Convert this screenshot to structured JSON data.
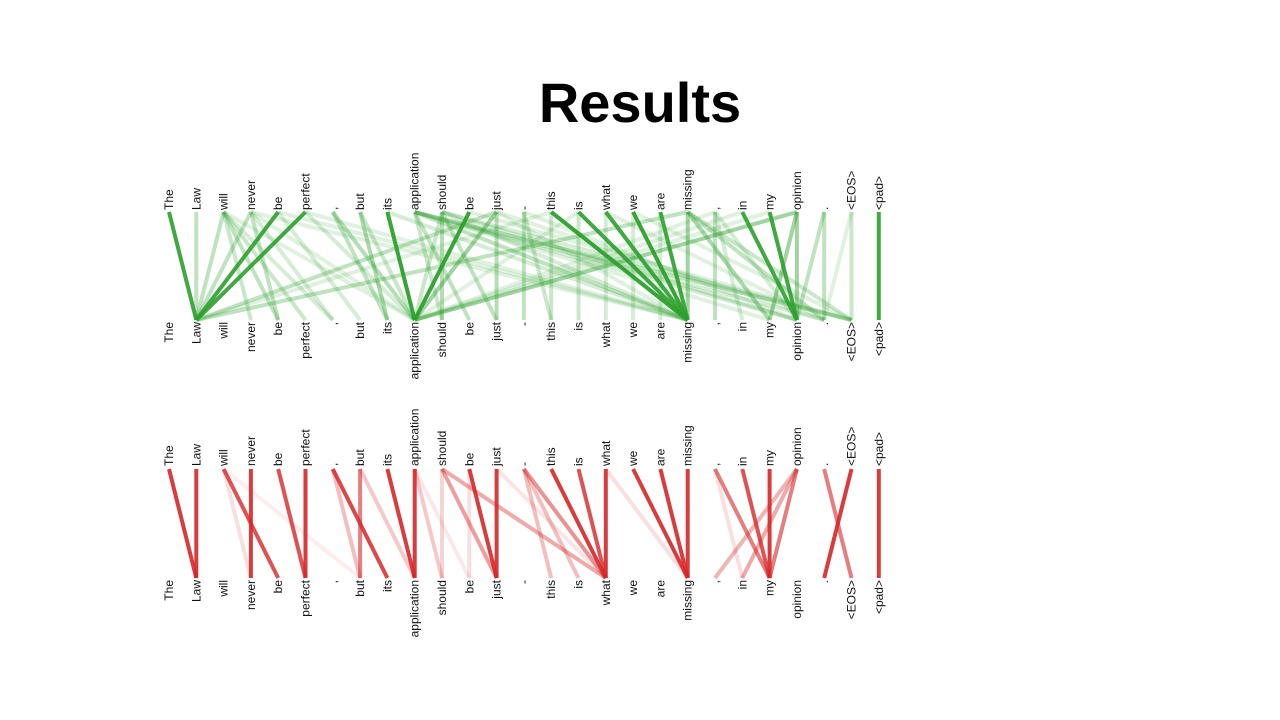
{
  "slide": {
    "title": "Results"
  },
  "tokens": [
    "The",
    "Law",
    "will",
    "never",
    "be",
    "perfect",
    ",",
    "but",
    "its",
    "application",
    "should",
    "be",
    "just",
    "-",
    "this",
    "is",
    "what",
    "we",
    "are",
    "missing",
    ",",
    "in",
    "my",
    "opinion",
    ".",
    "<EOS>",
    "<pad>"
  ],
  "colors": {
    "panel_top": "#2ca02c",
    "panel_bottom": "#d62728"
  },
  "panels": [
    {
      "id": "top",
      "color_key": "panel_top",
      "links": [
        [
          0,
          1,
          0.9
        ],
        [
          1,
          1,
          0.3
        ],
        [
          2,
          1,
          0.3
        ],
        [
          3,
          1,
          0.3
        ],
        [
          4,
          1,
          0.9
        ],
        [
          5,
          1,
          0.9
        ],
        [
          12,
          1,
          0.3
        ],
        [
          14,
          1,
          0.15
        ],
        [
          19,
          1,
          0.3
        ],
        [
          8,
          9,
          0.95
        ],
        [
          11,
          9,
          0.95
        ],
        [
          12,
          9,
          0.45
        ],
        [
          6,
          9,
          0.35
        ],
        [
          7,
          9,
          0.25
        ],
        [
          10,
          9,
          0.25
        ],
        [
          15,
          9,
          0.15
        ],
        [
          2,
          9,
          0.15
        ],
        [
          3,
          9,
          0.15
        ],
        [
          5,
          9,
          0.2
        ],
        [
          20,
          9,
          0.15
        ],
        [
          21,
          9,
          0.15
        ],
        [
          22,
          9,
          0.15
        ],
        [
          23,
          9,
          0.45
        ],
        [
          14,
          19,
          0.95
        ],
        [
          15,
          19,
          0.9
        ],
        [
          16,
          19,
          0.9
        ],
        [
          17,
          19,
          0.95
        ],
        [
          18,
          19,
          0.9
        ],
        [
          19,
          19,
          0.45
        ],
        [
          9,
          19,
          0.3
        ],
        [
          8,
          19,
          0.2
        ],
        [
          10,
          19,
          0.2
        ],
        [
          12,
          19,
          0.15
        ],
        [
          4,
          19,
          0.15
        ],
        [
          5,
          19,
          0.15
        ],
        [
          3,
          19,
          0.15
        ],
        [
          21,
          23,
          0.9
        ],
        [
          22,
          23,
          0.9
        ],
        [
          23,
          23,
          0.45
        ],
        [
          24,
          23,
          0.3
        ],
        [
          13,
          23,
          0.15
        ],
        [
          20,
          23,
          0.2
        ],
        [
          9,
          23,
          0.2
        ],
        [
          10,
          23,
          0.2
        ],
        [
          2,
          4,
          0.3
        ],
        [
          3,
          4,
          0.3
        ],
        [
          2,
          3,
          0.25
        ],
        [
          2,
          5,
          0.25
        ],
        [
          3,
          6,
          0.2
        ],
        [
          2,
          6,
          0.2
        ],
        [
          4,
          7,
          0.2
        ],
        [
          6,
          8,
          0.3
        ],
        [
          7,
          8,
          0.4
        ],
        [
          9,
          11,
          0.3
        ],
        [
          10,
          10,
          0.35
        ],
        [
          10,
          12,
          0.3
        ],
        [
          9,
          10,
          0.25
        ],
        [
          12,
          12,
          0.35
        ],
        [
          13,
          13,
          0.3
        ],
        [
          13,
          14,
          0.25
        ],
        [
          14,
          14,
          0.25
        ],
        [
          15,
          15,
          0.25
        ],
        [
          16,
          16,
          0.2
        ],
        [
          17,
          17,
          0.2
        ],
        [
          18,
          18,
          0.2
        ],
        [
          19,
          22,
          0.4
        ],
        [
          19,
          24,
          0.3
        ],
        [
          20,
          20,
          0.3
        ],
        [
          20,
          21,
          0.2
        ],
        [
          9,
          25,
          0.3
        ],
        [
          10,
          25,
          0.2
        ],
        [
          11,
          25,
          0.15
        ],
        [
          17,
          25,
          0.15
        ],
        [
          23,
          22,
          0.45
        ],
        [
          24,
          24,
          0.3
        ],
        [
          25,
          25,
          0.25
        ],
        [
          25,
          24,
          0.15
        ],
        [
          26,
          26,
          0.9
        ],
        [
          19,
          25,
          0.25
        ],
        [
          12,
          24,
          0.15
        ],
        [
          9,
          24,
          0.2
        ],
        [
          16,
          24,
          0.15
        ],
        [
          9,
          22,
          0.15
        ]
      ]
    },
    {
      "id": "bottom",
      "color_key": "panel_bottom",
      "links": [
        [
          0,
          1,
          0.9
        ],
        [
          1,
          1,
          0.9
        ],
        [
          2,
          4,
          0.8
        ],
        [
          3,
          3,
          0.9
        ],
        [
          4,
          5,
          0.8
        ],
        [
          5,
          5,
          0.9
        ],
        [
          6,
          8,
          0.85
        ],
        [
          7,
          7,
          0.6
        ],
        [
          8,
          9,
          0.9
        ],
        [
          9,
          9,
          0.9
        ],
        [
          10,
          12,
          0.45
        ],
        [
          10,
          16,
          0.4
        ],
        [
          11,
          12,
          0.9
        ],
        [
          12,
          12,
          0.9
        ],
        [
          13,
          16,
          0.5
        ],
        [
          13,
          14,
          0.3
        ],
        [
          13,
          15,
          0.3
        ],
        [
          14,
          16,
          0.9
        ],
        [
          15,
          16,
          0.8
        ],
        [
          16,
          16,
          0.9
        ],
        [
          17,
          19,
          0.9
        ],
        [
          18,
          19,
          0.9
        ],
        [
          19,
          19,
          0.9
        ],
        [
          20,
          22,
          0.6
        ],
        [
          21,
          22,
          0.8
        ],
        [
          22,
          22,
          0.9
        ],
        [
          23,
          22,
          0.6
        ],
        [
          23,
          21,
          0.4
        ],
        [
          23,
          20,
          0.35
        ],
        [
          24,
          25,
          0.6
        ],
        [
          25,
          24,
          0.9
        ],
        [
          26,
          26,
          0.9
        ],
        [
          2,
          3,
          0.15
        ],
        [
          6,
          7,
          0.3
        ],
        [
          7,
          9,
          0.25
        ],
        [
          9,
          10,
          0.25
        ],
        [
          10,
          10,
          0.2
        ],
        [
          11,
          11,
          0.15
        ],
        [
          16,
          19,
          0.15
        ],
        [
          20,
          21,
          0.15
        ],
        [
          2,
          7,
          0.08
        ],
        [
          12,
          16,
          0.12
        ],
        [
          9,
          11,
          0.1
        ]
      ]
    }
  ]
}
